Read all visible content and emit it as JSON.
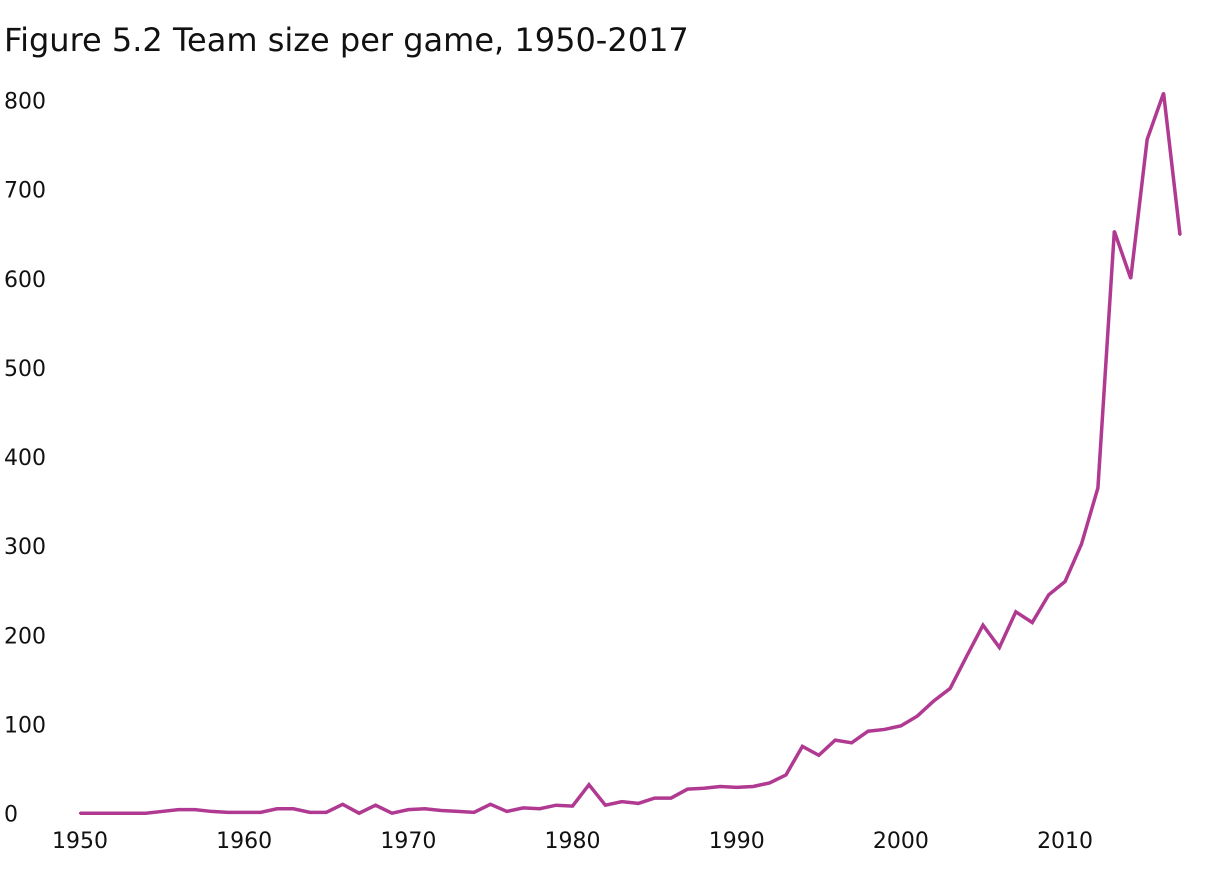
{
  "chart_data": {
    "type": "line",
    "title": "Figure 5.2 Team size per game, 1950-2017",
    "xlabel": "",
    "ylabel": "",
    "xlim": [
      1950,
      2017
    ],
    "ylim": [
      0,
      800
    ],
    "grid": false,
    "legend": "none",
    "x_ticks": [
      1950,
      1960,
      1970,
      1980,
      1990,
      2000,
      2010
    ],
    "y_ticks": [
      0,
      100,
      200,
      300,
      400,
      500,
      600,
      700,
      800
    ],
    "series": [
      {
        "name": "Team size per game",
        "color": "#b03a92",
        "x": [
          1950,
          1951,
          1952,
          1953,
          1954,
          1955,
          1956,
          1957,
          1958,
          1959,
          1960,
          1961,
          1962,
          1963,
          1964,
          1965,
          1966,
          1967,
          1968,
          1969,
          1970,
          1971,
          1972,
          1973,
          1974,
          1975,
          1976,
          1977,
          1978,
          1979,
          1980,
          1981,
          1982,
          1983,
          1984,
          1985,
          1986,
          1987,
          1988,
          1989,
          1990,
          1991,
          1992,
          1993,
          1994,
          1995,
          1996,
          1997,
          1998,
          1999,
          2000,
          2001,
          2002,
          2003,
          2004,
          2005,
          2006,
          2007,
          2008,
          2009,
          2010,
          2011,
          2012,
          2013,
          2014,
          2015,
          2016,
          2017
        ],
        "values": [
          2,
          2,
          2,
          2,
          2,
          4,
          6,
          6,
          4,
          3,
          3,
          3,
          7,
          7,
          3,
          3,
          12,
          2,
          11,
          2,
          6,
          7,
          5,
          4,
          3,
          12,
          4,
          8,
          7,
          11,
          10,
          34,
          11,
          15,
          13,
          19,
          19,
          29,
          30,
          32,
          31,
          32,
          36,
          45,
          77,
          67,
          84,
          81,
          94,
          96,
          100,
          111,
          128,
          142,
          178,
          213,
          188,
          228,
          216,
          247,
          262,
          304,
          367,
          655,
          602,
          758,
          810,
          651
        ]
      }
    ]
  }
}
